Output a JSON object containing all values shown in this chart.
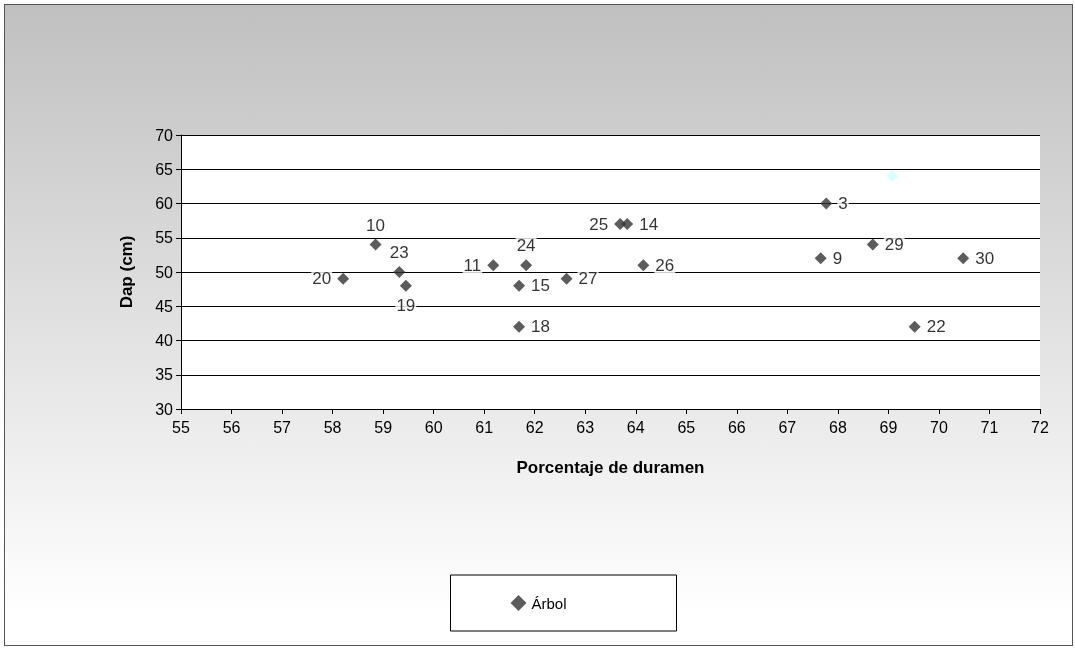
{
  "chart_data": {
    "type": "scatter",
    "xlabel": "Porcentaje de duramen",
    "ylabel": "Dap (cm)",
    "xlim": [
      55,
      72
    ],
    "xticks": [
      55,
      56,
      57,
      58,
      59,
      60,
      61,
      62,
      63,
      64,
      65,
      66,
      67,
      68,
      69,
      70,
      71,
      72
    ],
    "ylim": [
      30,
      70
    ],
    "yticks": [
      30,
      35,
      40,
      45,
      50,
      55,
      60,
      65,
      70
    ],
    "grid": "y",
    "legend": "bottom",
    "marker": "diamond",
    "series": [
      {
        "name": "Árbol",
        "color": "#333333",
        "x": [
          58.21,
          58.85,
          59.32,
          59.45,
          61.18,
          61.83,
          61.69,
          61.69,
          62.63,
          63.69,
          63.83,
          64.15,
          67.77,
          68.69,
          67.66,
          70.48,
          69.52
        ],
        "values": [
          49,
          54,
          50,
          48,
          51,
          51,
          48,
          42,
          49,
          57,
          57,
          51,
          60,
          54,
          52,
          52,
          42
        ]
      },
      {
        "color": "#ccffff",
        "x": [
          69.08
        ],
        "values": [
          64
        ]
      }
    ],
    "annotations": [
      {
        "text": "20",
        "x": 58.21,
        "y": 49
      },
      {
        "text": "10",
        "x": 58.85,
        "y": 54
      },
      {
        "text": "23",
        "x": 59.32,
        "y": 50
      },
      {
        "text": "19",
        "x": 59.45,
        "y": 48
      },
      {
        "text": "11",
        "x": 61.18,
        "y": 51
      },
      {
        "text": "24",
        "x": 61.83,
        "y": 51
      },
      {
        "text": "15",
        "x": 61.69,
        "y": 48
      },
      {
        "text": "18",
        "x": 61.69,
        "y": 42
      },
      {
        "text": "27",
        "x": 62.63,
        "y": 49
      },
      {
        "text": "25",
        "x": 63.69,
        "y": 57
      },
      {
        "text": "14",
        "x": 63.83,
        "y": 57
      },
      {
        "text": "26",
        "x": 64.15,
        "y": 51
      },
      {
        "text": "3",
        "x": 67.77,
        "y": 60
      },
      {
        "text": "29",
        "x": 68.69,
        "y": 54
      },
      {
        "text": "9",
        "x": 67.66,
        "y": 52
      },
      {
        "text": "30",
        "x": 70.48,
        "y": 52
      },
      {
        "text": "22",
        "x": 69.52,
        "y": 42
      }
    ]
  }
}
